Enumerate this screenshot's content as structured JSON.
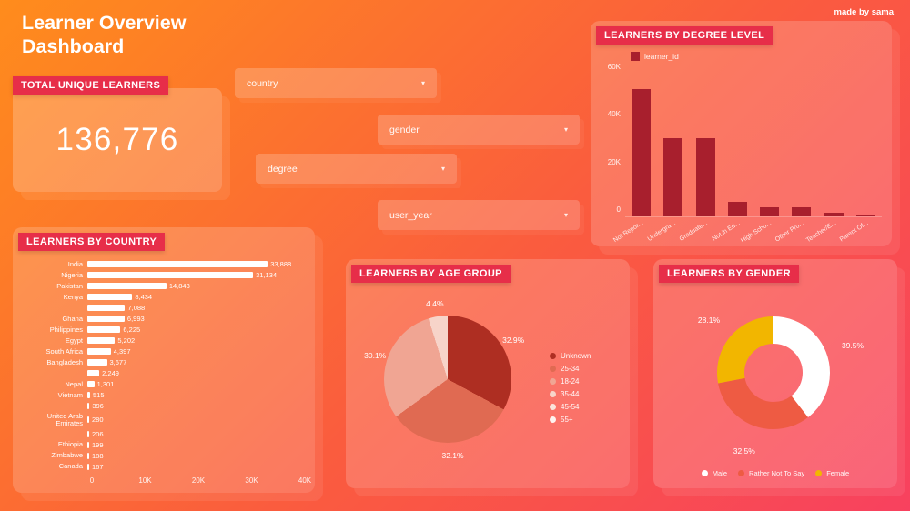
{
  "header": {
    "title": "Learner Overview Dashboard",
    "credit": "made by sama"
  },
  "kpi": {
    "header": "TOTAL UNIQUE LEARNERS",
    "value": "136,776"
  },
  "filters": [
    {
      "label": "country"
    },
    {
      "label": "gender"
    },
    {
      "label": "degree"
    },
    {
      "label": "user_year"
    }
  ],
  "colors": {
    "accent_strip": "#e72e49",
    "background_start": "#ff8c1c",
    "background_end": "#f8415f"
  },
  "chart_data": [
    {
      "id": "degree_level",
      "type": "bar",
      "title": "LEARNERS BY DEGREE LEVEL",
      "legend": [
        "learner_id"
      ],
      "legend_position": "top-left",
      "categories": [
        "Not Repor...",
        "Undergra...",
        "Graduate...",
        "Not in Ed...",
        "High Scho...",
        "Other Pro...",
        "Teacher/E...",
        "Parent Of..."
      ],
      "values": [
        51000,
        31400,
        31400,
        5800,
        3700,
        3500,
        1400,
        500
      ],
      "ylim": [
        0,
        60000
      ],
      "yticks": [
        "60K",
        "40K",
        "20K",
        "0"
      ],
      "bar_color": "#a81f2d",
      "grid": false
    },
    {
      "id": "country",
      "type": "bar",
      "orientation": "horizontal",
      "title": "LEARNERS BY COUNTRY",
      "categories": [
        "India",
        "Nigeria",
        "Pakistan",
        "Kenya",
        "",
        "Ghana",
        "Philippines",
        "Egypt",
        "South Africa",
        "Bangladesh",
        "",
        "Nepal",
        "Vietnam",
        "",
        "United Arab Emirates",
        "",
        "Ethiopia",
        "Zimbabwe",
        "Canada"
      ],
      "values": [
        33888,
        31134,
        14843,
        8434,
        7088,
        6993,
        6225,
        5202,
        4397,
        3677,
        2249,
        1301,
        515,
        396,
        280,
        206,
        199,
        188,
        167
      ],
      "value_labels": [
        "33,888",
        "31,134",
        "14,843",
        "8,434",
        "7,088",
        "6,993",
        "6,225",
        "5,202",
        "4,397",
        "3,677",
        "2,249",
        "1,301",
        "515",
        "396",
        "280",
        "206",
        "199",
        "188",
        "167"
      ],
      "xlim": [
        0,
        40000
      ],
      "xticks": [
        "0",
        "10K",
        "20K",
        "30K",
        "40K"
      ],
      "bar_color": "#ffffff",
      "grid": false
    },
    {
      "id": "age_group",
      "type": "pie",
      "title": "LEARNERS BY AGE GROUP",
      "legend_position": "right",
      "slices": [
        {
          "label": "Unknown",
          "pct": 32.9,
          "color": "#ae2e22"
        },
        {
          "label": "25-34",
          "pct": 32.1,
          "color": "#e06a52"
        },
        {
          "label": "18-24",
          "pct": 30.1,
          "color": "#f0a593"
        },
        {
          "label": "35-44",
          "pct": 4.4,
          "color": "#f7d4c9"
        },
        {
          "label": "45-54",
          "pct": null,
          "color": "#fae3db"
        },
        {
          "label": "55+",
          "pct": null,
          "color": "#fef3ef"
        }
      ]
    },
    {
      "id": "gender",
      "type": "donut",
      "title": "LEARNERS BY GENDER",
      "legend_position": "bottom",
      "slices": [
        {
          "label": "Male",
          "pct": 39.5,
          "color": "#ffffff"
        },
        {
          "label": "Rather Not To Say",
          "pct": 32.5,
          "color": "#ee5b43"
        },
        {
          "label": "Female",
          "pct": 28.1,
          "color": "#f2b600"
        }
      ]
    }
  ]
}
